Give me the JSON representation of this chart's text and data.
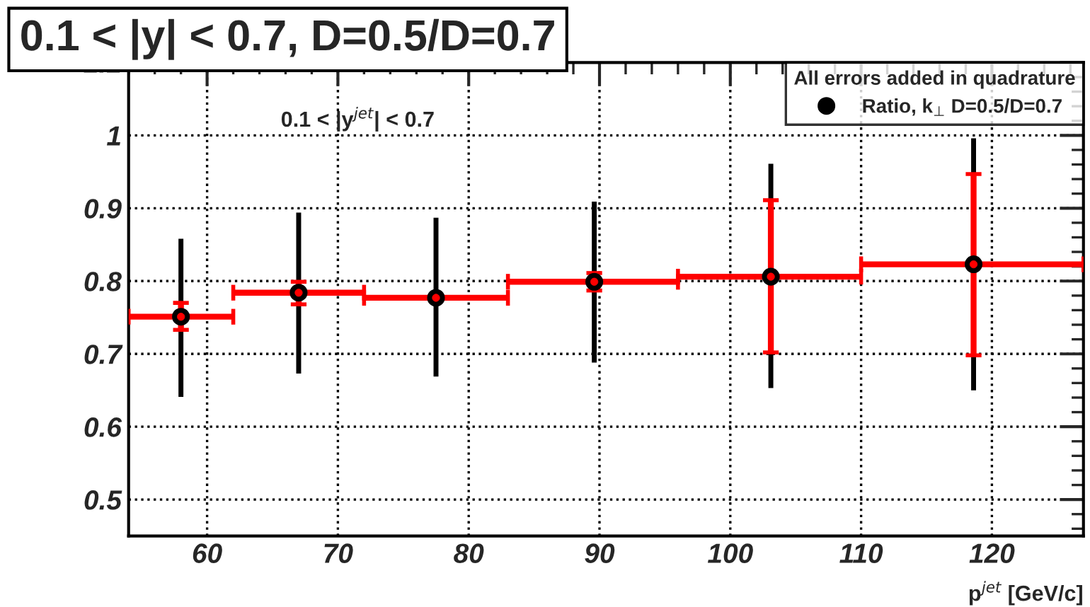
{
  "chart_data": {
    "type": "scatter",
    "title": "0.1 < |y| < 0.7, D=0.5/D=0.7",
    "xlabel": "p$^{jet}$ [GeV/c]",
    "legend_title": "All errors added in quadrature",
    "annotations": [
      "0.1 < |y$^{jet}$| < 0.7"
    ],
    "x": [
      58.0,
      67.0,
      77.5,
      89.6,
      103.1,
      118.6
    ],
    "series": [
      {
        "name": "Ratio, k$_{⊥}$ D=0.5/D=0.7",
        "color": "#000000",
        "marker": "circle",
        "values": [
          0.751,
          0.784,
          0.777,
          0.799,
          0.806,
          0.823
        ],
        "errors": [
          [
            0.641,
            0.858
          ],
          [
            0.673,
            0.894
          ],
          [
            0.669,
            0.887
          ],
          [
            0.688,
            0.909
          ],
          [
            0.653,
            0.961
          ],
          [
            0.65,
            0.996
          ]
        ]
      },
      {
        "color": "#ff0000",
        "marker": "circle",
        "values": [
          0.751,
          0.784,
          0.777,
          0.799,
          0.806,
          0.823
        ],
        "errors": [
          [
            0.733,
            0.77
          ],
          [
            0.768,
            0.799
          ],
          null,
          [
            0.787,
            0.811
          ],
          [
            0.702,
            0.911
          ],
          [
            0.698,
            0.947
          ]
        ],
        "xerrors": [
          [
            54,
            62
          ],
          [
            62,
            72
          ],
          [
            72,
            83
          ],
          [
            83,
            96
          ],
          [
            96,
            110
          ],
          [
            110,
            127
          ]
        ]
      }
    ],
    "xlim": [
      54,
      127
    ],
    "xticks": [
      60,
      70,
      80,
      90,
      100,
      110,
      120
    ],
    "ylim": [
      0.45,
      1.1
    ],
    "yticks": [
      0.5,
      0.6,
      0.7,
      0.8,
      0.9,
      1,
      1.1
    ],
    "grid": true,
    "legend": "top right"
  }
}
